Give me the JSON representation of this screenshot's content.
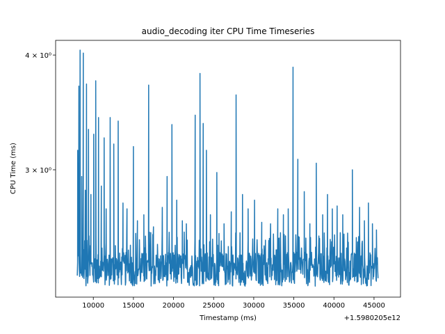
{
  "chart_data": {
    "type": "line",
    "title": "audio_decoding iter CPU Time Timeseries",
    "xlabel": "Timestamp (ms)",
    "ylabel": "CPU Time (ms)",
    "x_offset_label": "+1.5980205e12",
    "xlim": [
      5300,
      48300
    ],
    "ylim": [
      2.18,
      4.15
    ],
    "yscale": "log",
    "grid": false,
    "x_ticks": [
      {
        "value": 10000,
        "label": "10000"
      },
      {
        "value": 15000,
        "label": "15000"
      },
      {
        "value": 20000,
        "label": "20000"
      },
      {
        "value": 25000,
        "label": "25000"
      },
      {
        "value": 30000,
        "label": "30000"
      },
      {
        "value": 35000,
        "label": "35000"
      },
      {
        "value": 40000,
        "label": "40000"
      },
      {
        "value": 45000,
        "label": "45000"
      }
    ],
    "y_ticks": [
      {
        "value": 4.0,
        "label": "4 × 10⁰"
      },
      {
        "value": 3.0,
        "label": "3 × 10⁰"
      }
    ],
    "series": [
      {
        "color": "#1f77b4",
        "x_start": 8000,
        "x_end": 45500,
        "baseline": 2.34,
        "floor": 2.24,
        "spikes": [
          {
            "x": 8050,
            "y": 3.15
          },
          {
            "x": 8200,
            "y": 3.7
          },
          {
            "x": 8350,
            "y": 4.05
          },
          {
            "x": 8550,
            "y": 2.95
          },
          {
            "x": 8750,
            "y": 4.02
          },
          {
            "x": 9000,
            "y": 2.85
          },
          {
            "x": 9150,
            "y": 3.72
          },
          {
            "x": 9400,
            "y": 3.32
          },
          {
            "x": 9700,
            "y": 2.82
          },
          {
            "x": 10050,
            "y": 3.28
          },
          {
            "x": 10300,
            "y": 3.75
          },
          {
            "x": 10650,
            "y": 3.42
          },
          {
            "x": 11000,
            "y": 2.88
          },
          {
            "x": 11350,
            "y": 3.25
          },
          {
            "x": 11600,
            "y": 2.72
          },
          {
            "x": 12100,
            "y": 3.42
          },
          {
            "x": 12550,
            "y": 3.2
          },
          {
            "x": 13100,
            "y": 3.39
          },
          {
            "x": 13700,
            "y": 2.76
          },
          {
            "x": 14200,
            "y": 2.72
          },
          {
            "x": 15000,
            "y": 3.18
          },
          {
            "x": 15500,
            "y": 2.64
          },
          {
            "x": 16300,
            "y": 2.68
          },
          {
            "x": 16900,
            "y": 3.71
          },
          {
            "x": 17500,
            "y": 2.6
          },
          {
            "x": 18600,
            "y": 2.73
          },
          {
            "x": 19200,
            "y": 2.95
          },
          {
            "x": 19800,
            "y": 3.36
          },
          {
            "x": 20400,
            "y": 2.78
          },
          {
            "x": 21100,
            "y": 2.64
          },
          {
            "x": 21600,
            "y": 2.62
          },
          {
            "x": 22700,
            "y": 3.44
          },
          {
            "x": 23300,
            "y": 3.82
          },
          {
            "x": 23700,
            "y": 3.37
          },
          {
            "x": 24100,
            "y": 3.15
          },
          {
            "x": 24600,
            "y": 2.68
          },
          {
            "x": 25400,
            "y": 2.98
          },
          {
            "x": 26300,
            "y": 2.62
          },
          {
            "x": 27200,
            "y": 2.7
          },
          {
            "x": 27800,
            "y": 3.62
          },
          {
            "x": 28600,
            "y": 2.82
          },
          {
            "x": 29300,
            "y": 2.72
          },
          {
            "x": 30100,
            "y": 2.78
          },
          {
            "x": 31000,
            "y": 2.63
          },
          {
            "x": 32100,
            "y": 2.62
          },
          {
            "x": 33000,
            "y": 2.72
          },
          {
            "x": 33700,
            "y": 2.68
          },
          {
            "x": 34300,
            "y": 2.72
          },
          {
            "x": 34900,
            "y": 3.88
          },
          {
            "x": 35500,
            "y": 3.08
          },
          {
            "x": 36300,
            "y": 2.84
          },
          {
            "x": 37000,
            "y": 2.62
          },
          {
            "x": 37800,
            "y": 3.05
          },
          {
            "x": 38600,
            "y": 2.68
          },
          {
            "x": 39200,
            "y": 2.82
          },
          {
            "x": 39800,
            "y": 2.72
          },
          {
            "x": 40400,
            "y": 2.74
          },
          {
            "x": 41100,
            "y": 2.68
          },
          {
            "x": 42300,
            "y": 3.0
          },
          {
            "x": 43200,
            "y": 2.73
          },
          {
            "x": 43800,
            "y": 2.64
          },
          {
            "x": 44300,
            "y": 2.76
          },
          {
            "x": 44800,
            "y": 2.62
          },
          {
            "x": 45300,
            "y": 2.58
          }
        ]
      }
    ]
  }
}
